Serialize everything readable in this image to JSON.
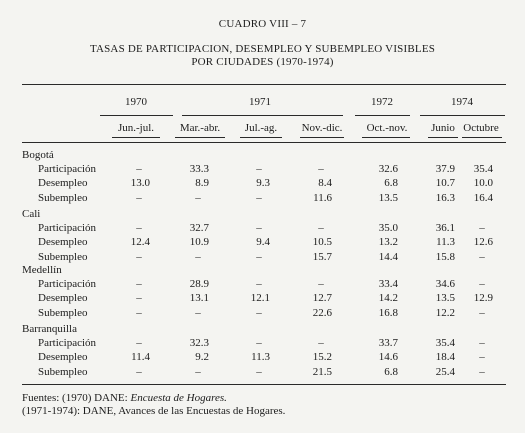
{
  "table_id": "CUADRO VIII – 7",
  "title_line1": "TASAS DE PARTICIPACION, DESEMPLEO Y SUBEMPLEO VISIBLES",
  "title_line2": "POR CIUDADES (1970-1974)",
  "years": [
    "1970",
    "1971",
    "1972",
    "1974"
  ],
  "periods": [
    "Jun.-jul.",
    "Mar.-abr.",
    "Jul.-ag.",
    "Nov.-dic.",
    "Oct.-nov.",
    "Junio",
    "Octubre"
  ],
  "cities": [
    {
      "name": "Bogotá",
      "rows": [
        {
          "label": "Participación",
          "values": [
            "–",
            "33.3",
            "–",
            "–",
            "32.6",
            "37.9",
            "35.4"
          ]
        },
        {
          "label": "Desempleo",
          "values": [
            "13.0",
            "8.9",
            "9.3",
            "8.4",
            "6.8",
            "10.7",
            "10.0"
          ]
        },
        {
          "label": "Subempleo",
          "values": [
            "–",
            "–",
            "–",
            "11.6",
            "13.5",
            "16.3",
            "16.4"
          ]
        }
      ]
    },
    {
      "name": "Cali",
      "rows": [
        {
          "label": "Participación",
          "values": [
            "–",
            "32.7",
            "–",
            "–",
            "35.0",
            "36.1",
            "–"
          ]
        },
        {
          "label": "Desempleo",
          "values": [
            "12.4",
            "10.9",
            "9.4",
            "10.5",
            "13.2",
            "11.3",
            "12.6"
          ]
        },
        {
          "label": "Subempleo",
          "values": [
            "–",
            "–",
            "–",
            "15.7",
            "14.4",
            "15.8",
            "–"
          ]
        }
      ]
    },
    {
      "name": "Medellín",
      "rows": [
        {
          "label": "Participación",
          "values": [
            "–",
            "28.9",
            "–",
            "–",
            "33.4",
            "34.6",
            "–"
          ]
        },
        {
          "label": "Desempleo",
          "values": [
            "–",
            "13.1",
            "12.1",
            "12.7",
            "14.2",
            "13.5",
            "12.9"
          ]
        },
        {
          "label": "Subempleo",
          "values": [
            "–",
            "–",
            "–",
            "22.6",
            "16.8",
            "12.2",
            "–"
          ]
        }
      ]
    },
    {
      "name": "Barranquilla",
      "rows": [
        {
          "label": "Participación",
          "values": [
            "–",
            "32.3",
            "–",
            "–",
            "33.7",
            "35.4",
            "–"
          ]
        },
        {
          "label": "Desempleo",
          "values": [
            "11.4",
            "9.2",
            "11.3",
            "15.2",
            "14.6",
            "18.4",
            "–"
          ]
        },
        {
          "label": "Subempleo",
          "values": [
            "–",
            "–",
            "–",
            "21.5",
            "6.8",
            "25.4",
            "–"
          ]
        }
      ]
    }
  ],
  "source_line1_prefix": "Fuentes: (1970) DANE: ",
  "source_line1_italic": "Encuesta de Hogares.",
  "source_line2": "(1971-1974): DANE, Avances de las Encuestas de Hogares."
}
